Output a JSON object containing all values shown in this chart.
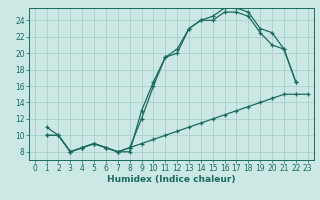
{
  "title": "",
  "xlabel": "Humidex (Indice chaleur)",
  "bg_color": "#cce8e4",
  "grid_color": "#aacfca",
  "line_color": "#1a6b5e",
  "xlim": [
    -0.5,
    23.5
  ],
  "ylim": [
    7,
    25.5
  ],
  "xticks": [
    0,
    1,
    2,
    3,
    4,
    5,
    6,
    7,
    8,
    9,
    10,
    11,
    12,
    13,
    14,
    15,
    16,
    17,
    18,
    19,
    20,
    21,
    22,
    23
  ],
  "yticks": [
    8,
    10,
    12,
    14,
    16,
    18,
    20,
    22,
    24
  ],
  "line1_x": [
    1,
    2,
    3,
    4,
    5,
    6,
    7,
    8,
    9,
    10,
    11,
    12,
    13,
    14,
    15,
    16,
    17,
    18,
    19,
    20,
    21,
    22
  ],
  "line1_y": [
    11,
    10,
    8,
    8.5,
    9,
    8.5,
    8,
    8,
    13,
    16.5,
    19.5,
    20,
    23,
    24,
    24,
    25,
    25,
    24.5,
    22.5,
    21,
    20.5,
    16.5
  ],
  "line2_x": [
    1,
    2,
    3,
    4,
    5,
    6,
    7,
    8,
    9,
    10,
    11,
    12,
    13,
    14,
    15,
    16,
    17,
    18,
    19,
    20,
    21,
    22
  ],
  "line2_y": [
    10,
    10,
    8,
    8.5,
    9,
    8.5,
    8,
    8.5,
    12,
    16,
    19.5,
    20.5,
    23,
    24,
    24.5,
    25.5,
    25.5,
    25,
    23,
    22.5,
    20.5,
    16.5
  ],
  "line3_x": [
    1,
    2,
    3,
    4,
    5,
    6,
    7,
    8,
    9,
    10,
    11,
    12,
    13,
    14,
    15,
    16,
    17,
    18,
    19,
    20,
    21,
    22,
    23
  ],
  "line3_y": [
    10,
    10,
    8,
    8.5,
    9,
    8.5,
    8,
    8.5,
    9,
    9.5,
    10,
    10.5,
    11,
    11.5,
    12,
    12.5,
    13,
    13.5,
    14,
    14.5,
    15,
    15,
    15
  ],
  "tick_fontsize": 5.5,
  "xlabel_fontsize": 6.5
}
